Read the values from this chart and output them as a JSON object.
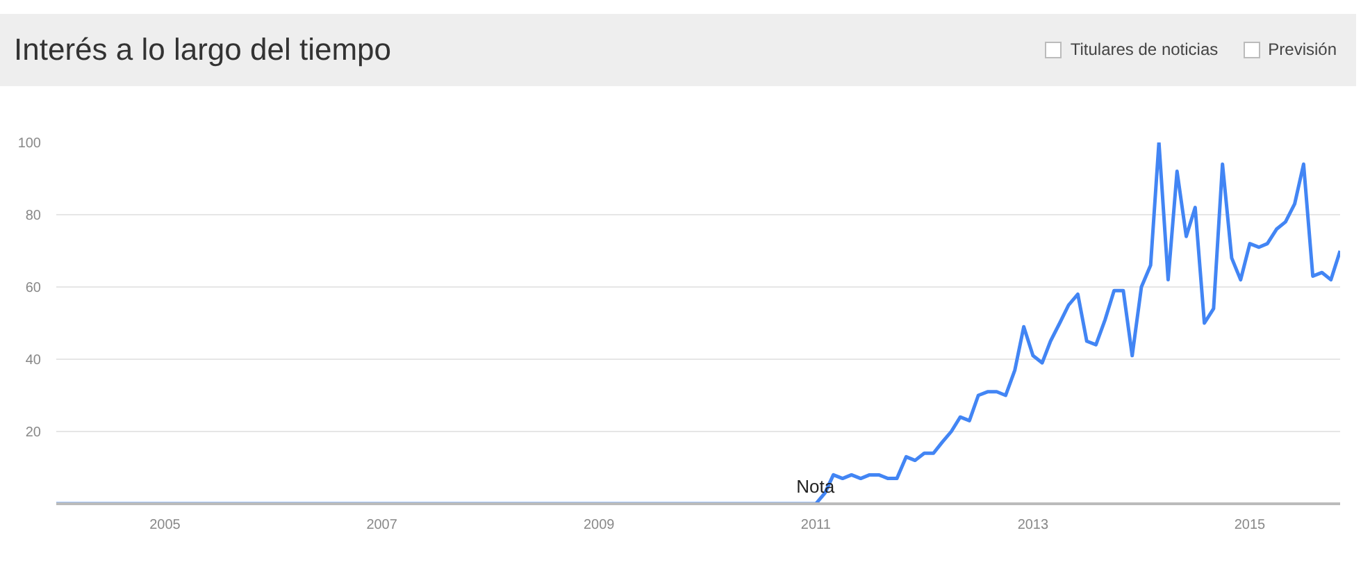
{
  "chart_data": {
    "type": "line",
    "title": "Interés a lo largo del tiempo",
    "annotations": [
      "Titulares de noticias",
      "Previsión",
      {
        "text": "Nota",
        "x": "2011-01",
        "y": 0
      }
    ],
    "series": [
      {
        "color": "#4285f4",
        "x": [
          "2004-01",
          "2011-01",
          "2011-02",
          "2011-03",
          "2011-04",
          "2011-05",
          "2011-06",
          "2011-07",
          "2011-08",
          "2011-09",
          "2011-10",
          "2011-11",
          "2011-12",
          "2012-01",
          "2012-02",
          "2012-03",
          "2012-04",
          "2012-05",
          "2012-06",
          "2012-07",
          "2012-08",
          "2012-09",
          "2012-10",
          "2012-11",
          "2012-12",
          "2013-01",
          "2013-02",
          "2013-03",
          "2013-04",
          "2013-05",
          "2013-06",
          "2013-07",
          "2013-08",
          "2013-09",
          "2013-10",
          "2013-11",
          "2013-12",
          "2014-01",
          "2014-02",
          "2014-03",
          "2014-04",
          "2014-05",
          "2014-06",
          "2014-07",
          "2014-08",
          "2014-09",
          "2014-10",
          "2014-11",
          "2014-12",
          "2015-01",
          "2015-02",
          "2015-03",
          "2015-04",
          "2015-05",
          "2015-06",
          "2015-07",
          "2015-08",
          "2015-09",
          "2015-10",
          "2015-11"
        ],
        "values": [
          0,
          0,
          3,
          8,
          7,
          8,
          7,
          8,
          8,
          7,
          7,
          13,
          12,
          14,
          14,
          17,
          20,
          24,
          23,
          30,
          31,
          31,
          30,
          37,
          49,
          41,
          39,
          45,
          50,
          55,
          58,
          45,
          44,
          51,
          59,
          59,
          41,
          60,
          66,
          100,
          62,
          92,
          74,
          82,
          50,
          54,
          94,
          68,
          62,
          72,
          71,
          72,
          76,
          78,
          83,
          94,
          63,
          64,
          62,
          70
        ]
      }
    ],
    "xlim": [
      "2004-01",
      "2015-11"
    ],
    "ylim": [
      0,
      100
    ],
    "xticks": [
      "2005",
      "2007",
      "2009",
      "2011",
      "2013",
      "2015"
    ],
    "yticks": [
      20,
      40,
      60,
      80,
      100
    ],
    "grid": "y",
    "marker": "none",
    "line_style": "solid"
  }
}
